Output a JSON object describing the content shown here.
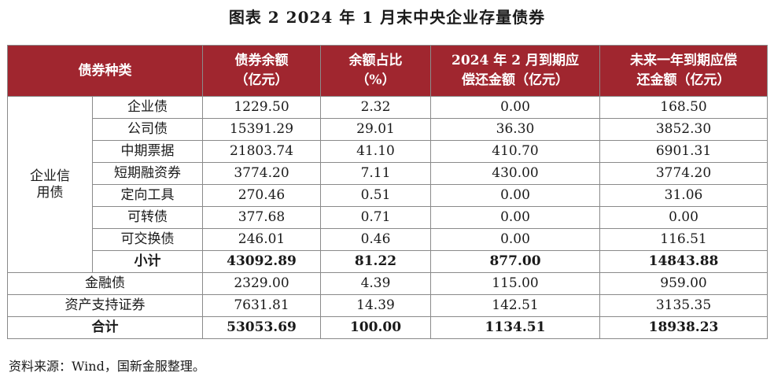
{
  "title": "图表 2  2024 年 1 月末中央企业存量债券",
  "headers": [
    "债券种类",
    "债券余额\n（亿元）",
    "余额占比\n（%）",
    "2024 年 2 月到期应\n偿还金额（亿元）",
    "未来一年到期应偿\n还金额（亿元）"
  ],
  "group_label": "企业信\n用债",
  "credit_rows": [
    {
      "name": "企业债",
      "balance": "1229.50",
      "share": "2.32",
      "feb_due": "0.00",
      "year_due": "168.50"
    },
    {
      "name": "公司债",
      "balance": "15391.29",
      "share": "29.01",
      "feb_due": "36.30",
      "year_due": "3852.30"
    },
    {
      "name": "中期票据",
      "balance": "21803.74",
      "share": "41.10",
      "feb_due": "410.70",
      "year_due": "6901.31"
    },
    {
      "name": "短期融资券",
      "balance": "3774.20",
      "share": "7.11",
      "feb_due": "430.00",
      "year_due": "3774.20"
    },
    {
      "name": "定向工具",
      "balance": "270.46",
      "share": "0.51",
      "feb_due": "0.00",
      "year_due": "31.06"
    },
    {
      "name": "可转债",
      "balance": "377.68",
      "share": "0.71",
      "feb_due": "0.00",
      "year_due": "0.00"
    },
    {
      "name": "可交换债",
      "balance": "246.01",
      "share": "0.46",
      "feb_due": "0.00",
      "year_due": "116.51"
    }
  ],
  "subtotal": {
    "name": "小计",
    "balance": "43092.89",
    "share": "81.22",
    "feb_due": "877.00",
    "year_due": "14843.88"
  },
  "other_rows": [
    {
      "name": "金融债",
      "balance": "2329.00",
      "share": "4.39",
      "feb_due": "115.00",
      "year_due": "959.00"
    },
    {
      "name": "资产支持证券",
      "balance": "7631.81",
      "share": "14.39",
      "feb_due": "142.51",
      "year_due": "3135.35"
    }
  ],
  "total": {
    "name": "合计",
    "balance": "53053.69",
    "share": "100.00",
    "feb_due": "1134.51",
    "year_due": "18938.23"
  },
  "source": "资料来源：Wind，国新金服整理。",
  "colors": {
    "header_bg": "#a0262f",
    "header_text": "#ffffff",
    "border": "#8a8a8a"
  }
}
